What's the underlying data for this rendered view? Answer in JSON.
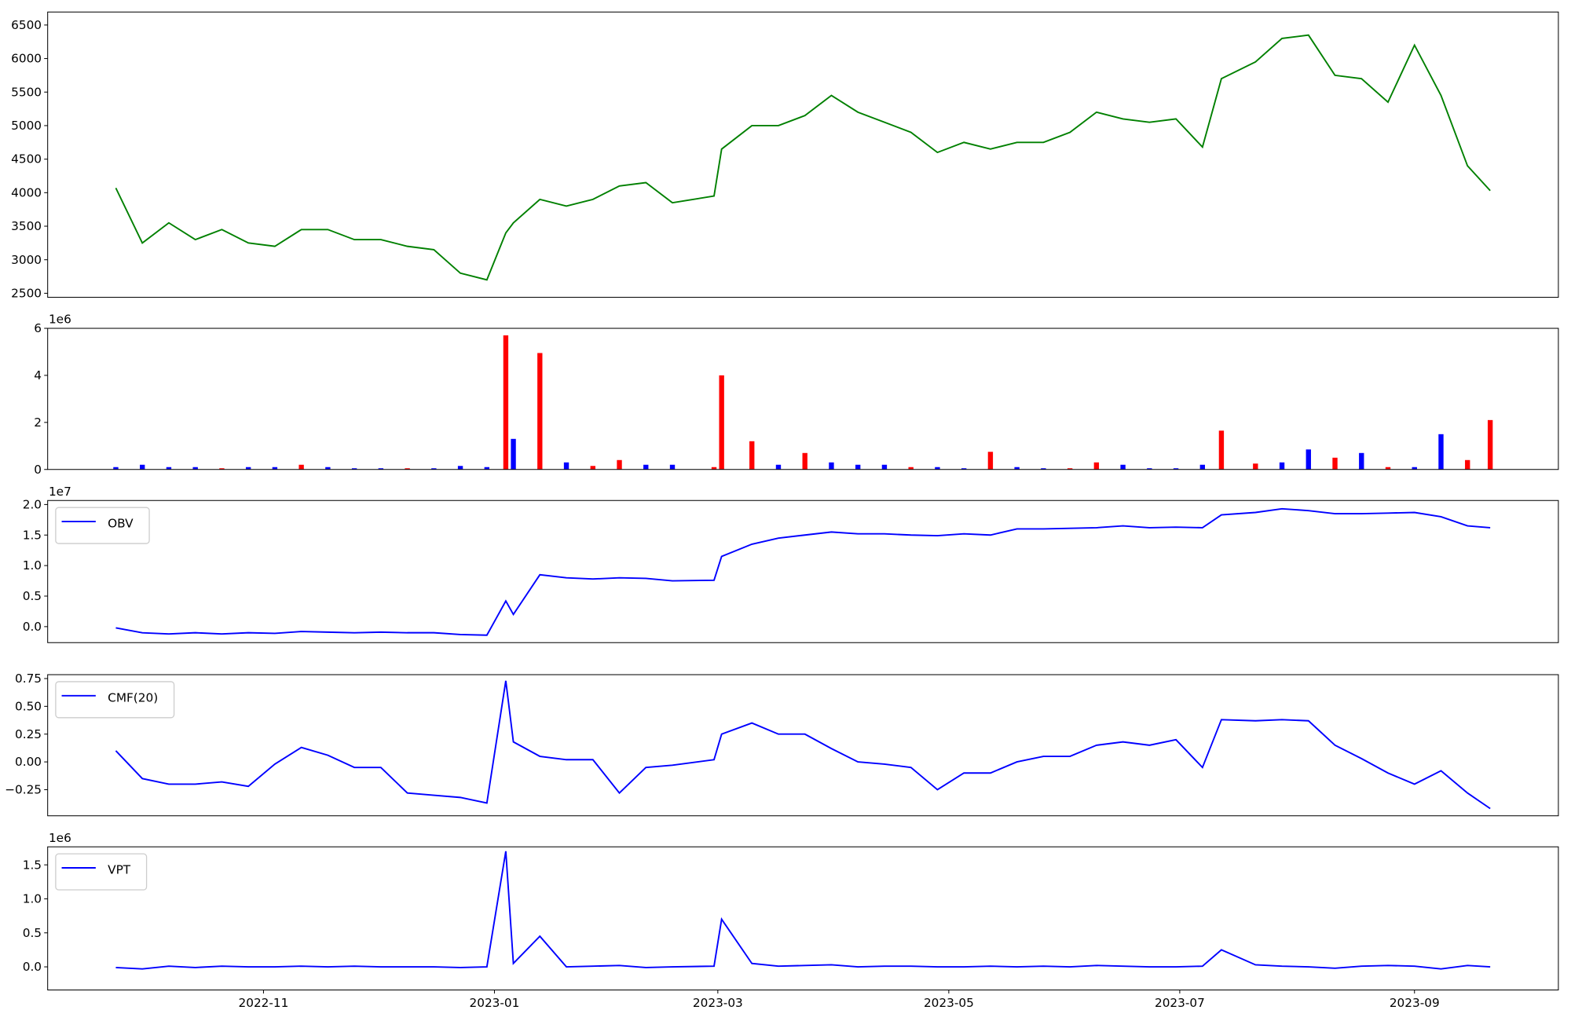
{
  "chart_data": [
    {
      "type": "line",
      "xlim": [
        "2022-09-05",
        "2023-10-09"
      ],
      "x": [
        "2022-09-23",
        "2022-09-30",
        "2022-10-07",
        "2022-10-14",
        "2022-10-21",
        "2022-10-28",
        "2022-11-04",
        "2022-11-11",
        "2022-11-18",
        "2022-11-25",
        "2022-12-02",
        "2022-12-09",
        "2022-12-16",
        "2022-12-23",
        "2022-12-30",
        "2023-01-04",
        "2023-01-06",
        "2023-01-13",
        "2023-01-20",
        "2023-01-27",
        "2023-02-03",
        "2023-02-10",
        "2023-02-17",
        "2023-02-28",
        "2023-03-02",
        "2023-03-10",
        "2023-03-17",
        "2023-03-24",
        "2023-03-31",
        "2023-04-07",
        "2023-04-14",
        "2023-04-21",
        "2023-04-28",
        "2023-05-05",
        "2023-05-12",
        "2023-05-19",
        "2023-05-26",
        "2023-06-02",
        "2023-06-09",
        "2023-06-16",
        "2023-06-23",
        "2023-06-30",
        "2023-07-07",
        "2023-07-12",
        "2023-07-21",
        "2023-07-28",
        "2023-08-04",
        "2023-08-11",
        "2023-08-18",
        "2023-08-25",
        "2023-09-01",
        "2023-09-08",
        "2023-09-15",
        "2023-09-21"
      ],
      "series": [
        {
          "color": "green",
          "values": [
            4070,
            3250,
            3550,
            3300,
            3450,
            3250,
            3200,
            3450,
            3450,
            3300,
            3300,
            3200,
            3150,
            2800,
            2700,
            3400,
            3550,
            3900,
            3800,
            3900,
            4100,
            4150,
            3850,
            3950,
            4650,
            5000,
            5000,
            5150,
            5450,
            5200,
            5050,
            4900,
            4600,
            4750,
            4650,
            4750,
            4750,
            4900,
            5200,
            5100,
            5050,
            5100,
            4680,
            5700,
            5950,
            6300,
            6350,
            5750,
            5700,
            5350,
            6200,
            5450,
            4400,
            4030
          ]
        }
      ],
      "ylim": [
        2440,
        6694
      ],
      "yticks": [
        2500,
        3000,
        3500,
        4000,
        4500,
        5000,
        5500,
        6000,
        6500
      ]
    },
    {
      "type": "bar",
      "xlim": [
        "2022-09-05",
        "2023-10-09"
      ],
      "x": [
        "2022-09-23",
        "2022-09-30",
        "2022-10-07",
        "2022-10-14",
        "2022-10-21",
        "2022-10-28",
        "2022-11-04",
        "2022-11-11",
        "2022-11-18",
        "2022-11-25",
        "2022-12-02",
        "2022-12-09",
        "2022-12-16",
        "2022-12-23",
        "2022-12-30",
        "2023-01-04",
        "2023-01-06",
        "2023-01-13",
        "2023-01-20",
        "2023-01-27",
        "2023-02-03",
        "2023-02-10",
        "2023-02-17",
        "2023-02-28",
        "2023-03-02",
        "2023-03-10",
        "2023-03-17",
        "2023-03-24",
        "2023-03-31",
        "2023-04-07",
        "2023-04-14",
        "2023-04-21",
        "2023-04-28",
        "2023-05-05",
        "2023-05-12",
        "2023-05-19",
        "2023-05-26",
        "2023-06-02",
        "2023-06-09",
        "2023-06-16",
        "2023-06-23",
        "2023-06-30",
        "2023-07-07",
        "2023-07-12",
        "2023-07-21",
        "2023-07-28",
        "2023-08-04",
        "2023-08-11",
        "2023-08-18",
        "2023-08-25",
        "2023-09-01",
        "2023-09-08",
        "2023-09-15",
        "2023-09-21"
      ],
      "values": [
        100000,
        200000,
        100000,
        100000,
        50000,
        100000,
        100000,
        200000,
        100000,
        50000,
        50000,
        50000,
        50000,
        150000,
        100000,
        5700000,
        1300000,
        4950000,
        300000,
        150000,
        400000,
        200000,
        200000,
        100000,
        4000000,
        1200000,
        200000,
        700000,
        300000,
        200000,
        200000,
        100000,
        100000,
        50000,
        750000,
        100000,
        50000,
        50000,
        300000,
        200000,
        50000,
        50000,
        200000,
        1650000,
        250000,
        300000,
        850000,
        500000,
        700000,
        100000,
        100000,
        1500000,
        400000,
        2100000
      ],
      "colors": [
        "blue",
        "blue",
        "blue",
        "blue",
        "red",
        "blue",
        "blue",
        "red",
        "blue",
        "blue",
        "blue",
        "red",
        "blue",
        "blue",
        "blue",
        "red",
        "blue",
        "red",
        "blue",
        "red",
        "red",
        "blue",
        "blue",
        "red",
        "red",
        "red",
        "blue",
        "red",
        "blue",
        "blue",
        "blue",
        "red",
        "blue",
        "blue",
        "red",
        "blue",
        "blue",
        "red",
        "red",
        "blue",
        "blue",
        "blue",
        "blue",
        "red",
        "red",
        "blue",
        "blue",
        "red",
        "blue",
        "red",
        "blue",
        "blue",
        "red",
        "red"
      ],
      "ylim": [
        0,
        6000000
      ],
      "offset_text": "1e6",
      "yticks": [
        0,
        {
          "value": 2000000,
          "label": "2"
        },
        {
          "value": 4000000,
          "label": "4"
        },
        {
          "value": 6000000,
          "label": "6"
        }
      ]
    },
    {
      "type": "line",
      "xlim": [
        "2022-09-05",
        "2023-10-09"
      ],
      "legend": "upper left",
      "offset_text": "1e7",
      "x": [
        "2022-09-23",
        "2022-09-30",
        "2022-10-07",
        "2022-10-14",
        "2022-10-21",
        "2022-10-28",
        "2022-11-04",
        "2022-11-11",
        "2022-11-18",
        "2022-11-25",
        "2022-12-02",
        "2022-12-09",
        "2022-12-16",
        "2022-12-23",
        "2022-12-30",
        "2023-01-04",
        "2023-01-06",
        "2023-01-13",
        "2023-01-20",
        "2023-01-27",
        "2023-02-03",
        "2023-02-10",
        "2023-02-17",
        "2023-02-28",
        "2023-03-02",
        "2023-03-10",
        "2023-03-17",
        "2023-03-24",
        "2023-03-31",
        "2023-04-07",
        "2023-04-14",
        "2023-04-21",
        "2023-04-28",
        "2023-05-05",
        "2023-05-12",
        "2023-05-19",
        "2023-05-26",
        "2023-06-02",
        "2023-06-09",
        "2023-06-16",
        "2023-06-23",
        "2023-06-30",
        "2023-07-07",
        "2023-07-12",
        "2023-07-21",
        "2023-07-28",
        "2023-08-04",
        "2023-08-11",
        "2023-08-18",
        "2023-08-25",
        "2023-09-01",
        "2023-09-08",
        "2023-09-15",
        "2023-09-21"
      ],
      "series": [
        {
          "name": "OBV",
          "color": "blue",
          "values": [
            -200000,
            -1000000,
            -1200000,
            -1000000,
            -1200000,
            -1000000,
            -1100000,
            -800000,
            -900000,
            -1000000,
            -900000,
            -1000000,
            -1000000,
            -1300000,
            -1400000,
            4200000,
            2000000,
            8500000,
            8000000,
            7800000,
            8000000,
            7900000,
            7500000,
            7600000,
            11500000,
            13500000,
            14500000,
            15000000,
            15500000,
            15200000,
            15200000,
            15000000,
            14900000,
            15200000,
            15000000,
            16000000,
            16000000,
            16100000,
            16200000,
            16500000,
            16200000,
            16300000,
            16200000,
            18300000,
            18700000,
            19300000,
            19000000,
            18500000,
            18500000,
            18600000,
            18700000,
            18000000,
            16500000,
            16200000
          ]
        }
      ],
      "ylim": [
        -2620000,
        20660000
      ],
      "yticks": [
        {
          "value": 0,
          "label": "0.0"
        },
        {
          "value": 5000000,
          "label": "0.5"
        },
        {
          "value": 10000000,
          "label": "1.0"
        },
        {
          "value": 15000000,
          "label": "1.5"
        },
        {
          "value": 20000000,
          "label": "2.0"
        }
      ]
    },
    {
      "type": "line",
      "xlim": [
        "2022-09-05",
        "2023-10-09"
      ],
      "legend": "upper left",
      "x": [
        "2022-09-23",
        "2022-09-30",
        "2022-10-07",
        "2022-10-14",
        "2022-10-21",
        "2022-10-28",
        "2022-11-04",
        "2022-11-11",
        "2022-11-18",
        "2022-11-25",
        "2022-12-02",
        "2022-12-09",
        "2022-12-16",
        "2022-12-23",
        "2022-12-30",
        "2023-01-04",
        "2023-01-06",
        "2023-01-13",
        "2023-01-20",
        "2023-01-27",
        "2023-02-03",
        "2023-02-10",
        "2023-02-17",
        "2023-02-28",
        "2023-03-02",
        "2023-03-10",
        "2023-03-17",
        "2023-03-24",
        "2023-03-31",
        "2023-04-07",
        "2023-04-14",
        "2023-04-21",
        "2023-04-28",
        "2023-05-05",
        "2023-05-12",
        "2023-05-19",
        "2023-05-26",
        "2023-06-02",
        "2023-06-09",
        "2023-06-16",
        "2023-06-23",
        "2023-06-30",
        "2023-07-07",
        "2023-07-12",
        "2023-07-21",
        "2023-07-28",
        "2023-08-04",
        "2023-08-11",
        "2023-08-18",
        "2023-08-25",
        "2023-09-01",
        "2023-09-08",
        "2023-09-15",
        "2023-09-21"
      ],
      "series": [
        {
          "name": "CMF(20)",
          "color": "blue",
          "values": [
            0.1,
            -0.15,
            -0.2,
            -0.2,
            -0.18,
            -0.22,
            -0.02,
            0.13,
            0.06,
            -0.05,
            -0.05,
            -0.28,
            -0.3,
            -0.32,
            -0.37,
            0.73,
            0.18,
            0.05,
            0.02,
            0.02,
            -0.28,
            -0.05,
            -0.03,
            0.02,
            0.25,
            0.35,
            0.25,
            0.25,
            0.12,
            0,
            -0.02,
            -0.05,
            -0.25,
            -0.1,
            -0.1,
            0,
            0.05,
            0.05,
            0.15,
            0.18,
            0.15,
            0.2,
            -0.05,
            0.38,
            0.37,
            0.38,
            0.37,
            0.15,
            0.03,
            -0.1,
            -0.2,
            -0.08,
            -0.28,
            -0.42
          ]
        }
      ],
      "ylim": [
        -0.485,
        0.785
      ],
      "yticks": [
        {
          "value": -0.25,
          "label": "−0.25"
        },
        {
          "value": 0,
          "label": "0.00"
        },
        0.25,
        {
          "value": 0.5,
          "label": "0.50"
        },
        0.75
      ]
    },
    {
      "type": "line",
      "xlim": [
        "2022-09-05",
        "2023-10-09"
      ],
      "legend": "upper left",
      "offset_text": "1e6",
      "x": [
        "2022-09-23",
        "2022-09-30",
        "2022-10-07",
        "2022-10-14",
        "2022-10-21",
        "2022-10-28",
        "2022-11-04",
        "2022-11-11",
        "2022-11-18",
        "2022-11-25",
        "2022-12-02",
        "2022-12-09",
        "2022-12-16",
        "2022-12-23",
        "2022-12-30",
        "2023-01-04",
        "2023-01-06",
        "2023-01-13",
        "2023-01-20",
        "2023-01-27",
        "2023-02-03",
        "2023-02-10",
        "2023-02-17",
        "2023-02-28",
        "2023-03-02",
        "2023-03-10",
        "2023-03-17",
        "2023-03-24",
        "2023-03-31",
        "2023-04-07",
        "2023-04-14",
        "2023-04-21",
        "2023-04-28",
        "2023-05-05",
        "2023-05-12",
        "2023-05-19",
        "2023-05-26",
        "2023-06-02",
        "2023-06-09",
        "2023-06-16",
        "2023-06-23",
        "2023-06-30",
        "2023-07-07",
        "2023-07-12",
        "2023-07-21",
        "2023-07-28",
        "2023-08-04",
        "2023-08-11",
        "2023-08-18",
        "2023-08-25",
        "2023-09-01",
        "2023-09-08",
        "2023-09-15",
        "2023-09-21"
      ],
      "series": [
        {
          "name": "VPT",
          "color": "blue",
          "values": [
            -10000,
            -30000,
            10000,
            -10000,
            10000,
            0,
            0,
            10000,
            0,
            10000,
            0,
            0,
            0,
            -10000,
            0,
            1700000,
            50000,
            450000,
            0,
            10000,
            20000,
            -10000,
            0,
            10000,
            700000,
            50000,
            10000,
            20000,
            30000,
            0,
            10000,
            10000,
            0,
            0,
            10000,
            0,
            10000,
            0,
            20000,
            10000,
            0,
            0,
            10000,
            250000,
            30000,
            10000,
            0,
            -20000,
            10000,
            20000,
            10000,
            -30000,
            20000,
            0
          ]
        }
      ],
      "ylim": [
        -340000,
        1765000
      ],
      "yticks": [
        {
          "value": 0,
          "label": "0.0"
        },
        {
          "value": 500000,
          "label": "0.5"
        },
        {
          "value": 1000000,
          "label": "1.0"
        },
        {
          "value": 1500000,
          "label": "1.5"
        }
      ],
      "xticks": [
        {
          "value": "2022-11-01",
          "label": "2022-11"
        },
        {
          "value": "2023-01-01",
          "label": "2023-01"
        },
        {
          "value": "2023-03-01",
          "label": "2023-03"
        },
        {
          "value": "2023-05-01",
          "label": "2023-05"
        },
        {
          "value": "2023-07-01",
          "label": "2023-07"
        },
        {
          "value": "2023-09-01",
          "label": "2023-09"
        }
      ]
    }
  ]
}
